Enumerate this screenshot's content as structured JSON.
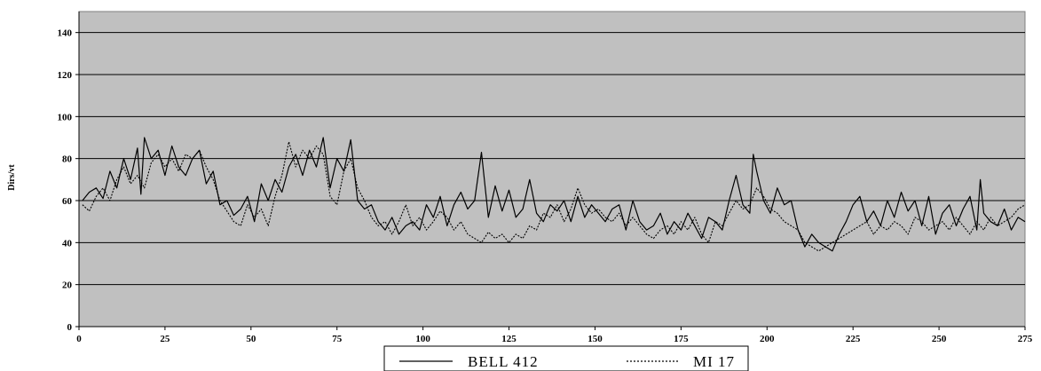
{
  "chart_data": {
    "type": "line",
    "title": "",
    "xlabel": "",
    "ylabel": "Dirs/vt",
    "xlim": [
      0,
      275
    ],
    "ylim": [
      0,
      150
    ],
    "x_ticks": [
      0,
      25,
      50,
      75,
      100,
      125,
      150,
      175,
      200,
      225,
      250,
      275
    ],
    "y_ticks": [
      0,
      20,
      40,
      60,
      80,
      100,
      120,
      140
    ],
    "grid": true,
    "plot_background": "#c0c0c0",
    "legend_position": "bottom",
    "series": [
      {
        "name": "BELL 412",
        "style": "solid",
        "color": "#000000",
        "x": [
          1,
          3,
          5,
          7,
          9,
          11,
          13,
          15,
          17,
          18,
          19,
          21,
          23,
          25,
          27,
          29,
          31,
          33,
          35,
          37,
          39,
          41,
          43,
          45,
          47,
          49,
          51,
          53,
          55,
          57,
          59,
          61,
          63,
          65,
          67,
          69,
          71,
          73,
          75,
          77,
          79,
          81,
          83,
          85,
          87,
          89,
          91,
          93,
          95,
          97,
          99,
          101,
          103,
          105,
          107,
          109,
          111,
          113,
          115,
          117,
          119,
          121,
          123,
          125,
          127,
          129,
          131,
          133,
          135,
          137,
          139,
          141,
          143,
          145,
          147,
          149,
          151,
          153,
          155,
          157,
          159,
          161,
          163,
          165,
          167,
          169,
          171,
          173,
          175,
          177,
          179,
          181,
          183,
          185,
          187,
          189,
          191,
          193,
          195,
          196,
          197,
          199,
          201,
          203,
          205,
          207,
          209,
          211,
          213,
          215,
          217,
          219,
          221,
          223,
          225,
          227,
          229,
          231,
          233,
          235,
          237,
          239,
          241,
          243,
          245,
          247,
          249,
          251,
          253,
          255,
          257,
          259,
          261,
          262,
          263,
          265,
          267,
          269,
          271,
          273,
          275
        ],
        "y": [
          60,
          64,
          66,
          61,
          74,
          66,
          80,
          70,
          85,
          63,
          90,
          80,
          84,
          72,
          86,
          76,
          72,
          80,
          84,
          68,
          74,
          58,
          60,
          53,
          56,
          62,
          50,
          68,
          60,
          70,
          64,
          76,
          82,
          72,
          84,
          76,
          90,
          66,
          80,
          74,
          89,
          60,
          56,
          58,
          50,
          46,
          52,
          44,
          48,
          50,
          46,
          58,
          52,
          62,
          48,
          58,
          64,
          56,
          60,
          83,
          52,
          67,
          55,
          65,
          52,
          56,
          70,
          54,
          50,
          58,
          55,
          60,
          50,
          62,
          52,
          58,
          54,
          50,
          56,
          58,
          46,
          60,
          50,
          46,
          48,
          54,
          44,
          50,
          46,
          54,
          48,
          42,
          52,
          50,
          46,
          60,
          72,
          58,
          54,
          82,
          74,
          60,
          54,
          66,
          58,
          60,
          46,
          38,
          44,
          40,
          38,
          36,
          44,
          50,
          58,
          62,
          50,
          55,
          48,
          60,
          52,
          64,
          55,
          60,
          48,
          62,
          44,
          54,
          58,
          48,
          56,
          62,
          46,
          70,
          54,
          50,
          48,
          56,
          46,
          52,
          50
        ]
      },
      {
        "name": "MI 17",
        "style": "dotted",
        "color": "#000000",
        "x": [
          1,
          3,
          5,
          7,
          9,
          11,
          13,
          15,
          17,
          19,
          21,
          23,
          25,
          27,
          29,
          31,
          33,
          35,
          37,
          39,
          41,
          43,
          45,
          47,
          49,
          51,
          53,
          55,
          57,
          59,
          61,
          63,
          65,
          67,
          69,
          71,
          73,
          75,
          77,
          79,
          81,
          83,
          85,
          87,
          89,
          91,
          93,
          95,
          97,
          99,
          101,
          103,
          105,
          107,
          109,
          111,
          113,
          115,
          117,
          119,
          121,
          123,
          125,
          127,
          129,
          131,
          133,
          135,
          137,
          139,
          141,
          143,
          145,
          147,
          149,
          151,
          153,
          155,
          157,
          159,
          161,
          163,
          165,
          167,
          169,
          171,
          173,
          175,
          177,
          179,
          181,
          183,
          185,
          187,
          189,
          191,
          193,
          195,
          197,
          199,
          201,
          203,
          205,
          207,
          209,
          211,
          213,
          215,
          217,
          219,
          221,
          223,
          225,
          227,
          229,
          231,
          233,
          235,
          237,
          239,
          241,
          243,
          245,
          247,
          249,
          251,
          253,
          255,
          257,
          259,
          261,
          263,
          265,
          267,
          269,
          271,
          273,
          275
        ],
        "y": [
          58,
          55,
          62,
          66,
          60,
          70,
          76,
          68,
          72,
          66,
          78,
          82,
          76,
          80,
          74,
          82,
          80,
          84,
          76,
          70,
          60,
          55,
          50,
          48,
          58,
          52,
          56,
          48,
          62,
          72,
          88,
          76,
          84,
          80,
          86,
          82,
          62,
          58,
          74,
          80,
          66,
          60,
          52,
          48,
          50,
          44,
          50,
          58,
          48,
          52,
          46,
          50,
          55,
          52,
          46,
          50,
          44,
          42,
          40,
          45,
          42,
          44,
          40,
          44,
          42,
          48,
          46,
          54,
          52,
          58,
          50,
          56,
          66,
          58,
          54,
          56,
          52,
          50,
          54,
          48,
          52,
          48,
          44,
          42,
          46,
          48,
          44,
          50,
          46,
          52,
          44,
          40,
          50,
          48,
          54,
          60,
          56,
          58,
          66,
          62,
          56,
          54,
          50,
          48,
          46,
          40,
          38,
          36,
          38,
          40,
          42,
          44,
          46,
          48,
          50,
          44,
          48,
          46,
          50,
          48,
          44,
          52,
          50,
          46,
          48,
          50,
          46,
          52,
          48,
          44,
          50,
          46,
          52,
          48,
          50,
          52,
          56,
          58
        ]
      }
    ]
  }
}
